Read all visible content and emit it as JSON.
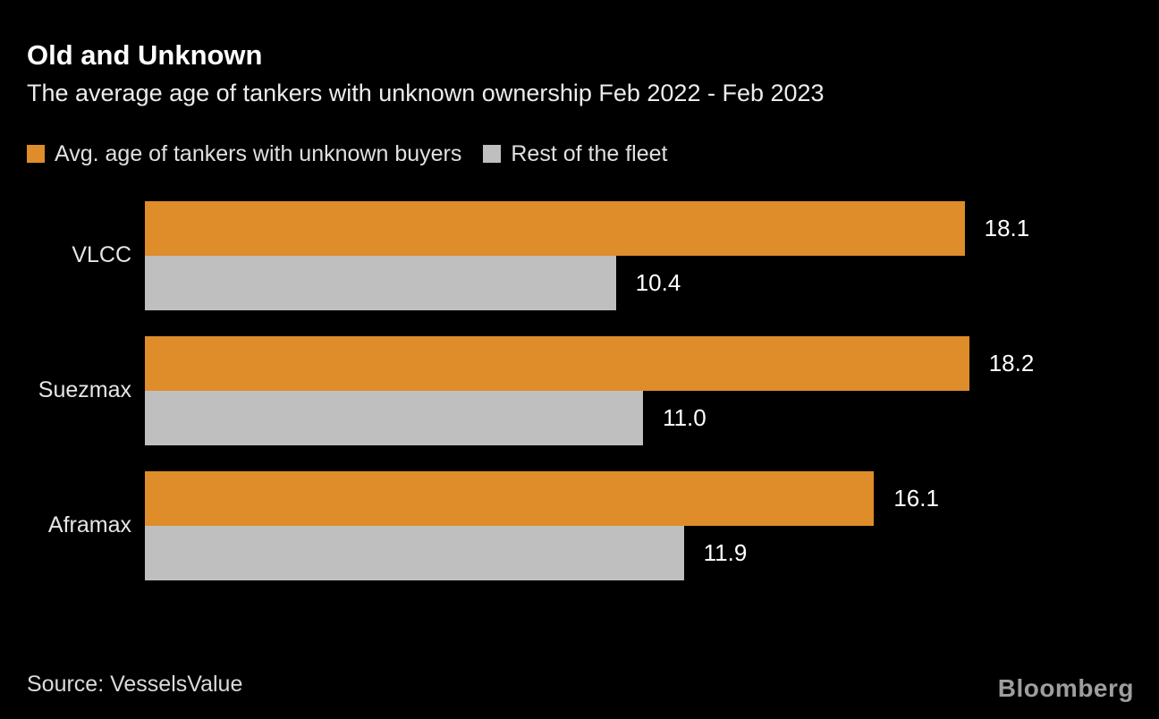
{
  "header": {
    "title": "Old and Unknown",
    "subtitle": "The average age of tankers with unknown ownership Feb 2022 - Feb 2023"
  },
  "footer": {
    "source": "Source: VesselsValue",
    "brand": "Bloomberg"
  },
  "colors": {
    "background": "#000000",
    "orange": "#de8d2a",
    "gray": "#bfbfbf",
    "title_text": "#ffffff",
    "muted_text": "#e0e0e0"
  },
  "chart_data": {
    "type": "bar",
    "orientation": "horizontal",
    "title": "Old and Unknown",
    "subtitle": "The average age of tankers with unknown ownership Feb 2022 - Feb 2023",
    "categories": [
      "VLCC",
      "Suezmax",
      "Aframax"
    ],
    "series": [
      {
        "name": "Avg. age of tankers with unknown buyers",
        "color": "#de8d2a",
        "values": [
          18.1,
          18.2,
          16.1
        ]
      },
      {
        "name": "Rest of the fleet",
        "color": "#bfbfbf",
        "values": [
          10.4,
          11.0,
          11.9
        ]
      }
    ],
    "xlim": [
      0,
      21.8
    ],
    "value_labels": true,
    "value_decimals": 1,
    "legend_position": "top",
    "grid": false,
    "xlabel": "",
    "ylabel": ""
  }
}
